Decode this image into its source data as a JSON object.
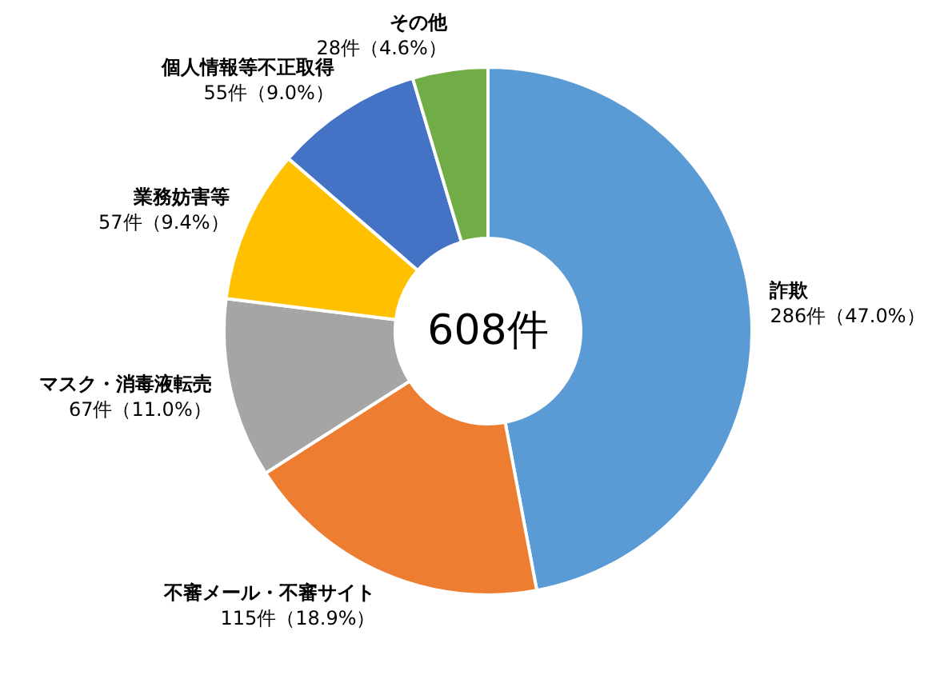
{
  "chart_data": {
    "type": "donut",
    "categories": [
      "詐欺",
      "不審メール・不審サイト",
      "マスク・消毒液転売",
      "業務妨害等",
      "個人情報等不正取得",
      "その他"
    ],
    "values": [
      286,
      115,
      67,
      57,
      55,
      28
    ],
    "colors": [
      "#5b9bd5",
      "#ed7d31",
      "#a5a5a5",
      "#ffc000",
      "#4472c4",
      "#70ad47"
    ],
    "value_labels": [
      "286件（47.0%）",
      "115件（18.9%）",
      "67件（11.0%）",
      "57件（9.4%）",
      "55件（9.0%）",
      "28件（4.6%）"
    ],
    "annotations": [
      "608件"
    ]
  }
}
